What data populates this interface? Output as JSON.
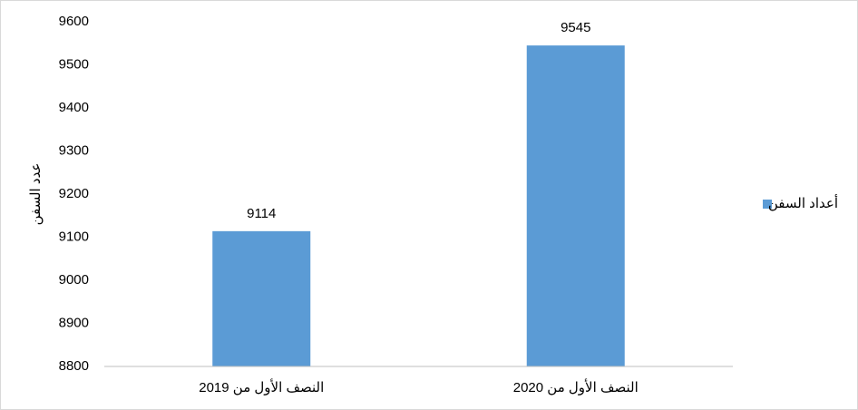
{
  "chart_data": {
    "type": "bar",
    "y_label": "عدد السفن",
    "categories": [
      "النصف الأول من 2019",
      "النصف الأول من 2020"
    ],
    "series": [
      {
        "name": "أعداد السفن",
        "color": "#5b9bd5",
        "values": [
          9114,
          9545
        ]
      }
    ],
    "ylim": [
      8800,
      9600
    ],
    "yticks": [
      8800,
      8900,
      9000,
      9100,
      9200,
      9300,
      9400,
      9500,
      9600
    ],
    "grid": false,
    "legend": "right"
  }
}
